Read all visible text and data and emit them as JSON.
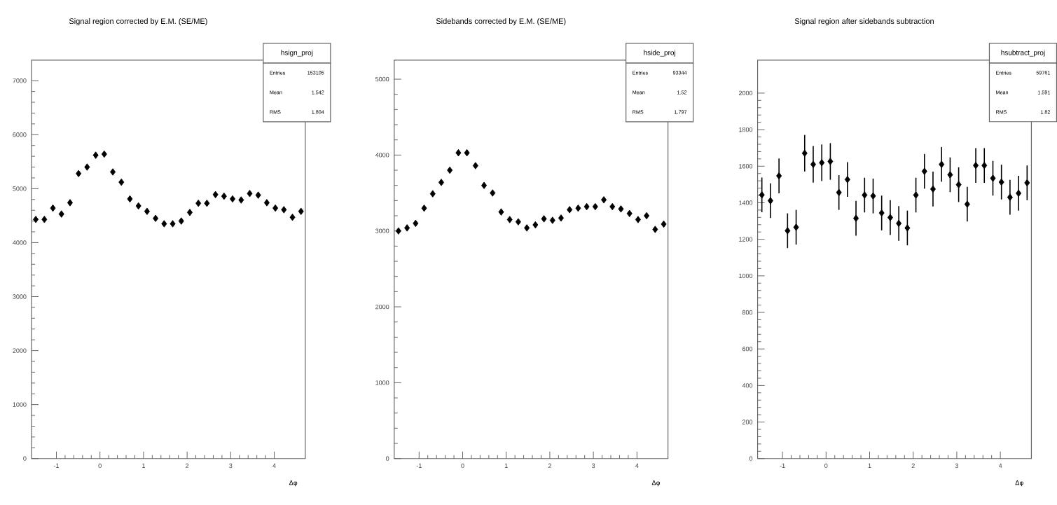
{
  "chart_data": [
    {
      "type": "scatter",
      "title": "Signal region corrected by E.M. (SE/ME)",
      "xlabel": "Δφ",
      "marker": "diamond",
      "color": "#000000",
      "x": [
        -1.473,
        -1.276,
        -1.08,
        -0.884,
        -0.687,
        -0.491,
        -0.295,
        -0.098,
        0.098,
        0.295,
        0.491,
        0.687,
        0.884,
        1.08,
        1.276,
        1.473,
        1.669,
        1.866,
        2.062,
        2.258,
        2.454,
        2.651,
        2.847,
        3.043,
        3.24,
        3.436,
        3.632,
        3.829,
        4.025,
        4.221,
        4.418,
        4.614
      ],
      "values": [
        4430,
        4430,
        4640,
        4530,
        4740,
        5280,
        5400,
        5620,
        5640,
        5310,
        5120,
        4810,
        4680,
        4580,
        4450,
        4350,
        4350,
        4400,
        4560,
        4730,
        4730,
        4890,
        4860,
        4810,
        4790,
        4910,
        4880,
        4740,
        4640,
        4610,
        4470,
        4580
      ],
      "xlim": [
        -1.571,
        4.712
      ],
      "xticks": [
        -1,
        0,
        1,
        2,
        3,
        4
      ],
      "ylim": [
        0,
        7380
      ],
      "yticks": [
        0,
        1000,
        2000,
        3000,
        4000,
        5000,
        6000,
        7000
      ],
      "annotations": [
        "hsign_proj",
        "Entries",
        "153105",
        "Mean",
        "1.542",
        "RMS",
        "1.804"
      ]
    },
    {
      "type": "scatter",
      "title": "Sidebands corrected by E.M. (SE/ME)",
      "xlabel": "Δφ",
      "marker": "diamond",
      "color": "#000000",
      "x": [
        -1.473,
        -1.276,
        -1.08,
        -0.884,
        -0.687,
        -0.491,
        -0.295,
        -0.098,
        0.098,
        0.295,
        0.491,
        0.687,
        0.884,
        1.08,
        1.276,
        1.473,
        1.669,
        1.866,
        2.062,
        2.258,
        2.454,
        2.651,
        2.847,
        3.043,
        3.24,
        3.436,
        3.632,
        3.829,
        4.025,
        4.221,
        4.418,
        4.614
      ],
      "values": [
        3000,
        3040,
        3100,
        3300,
        3490,
        3640,
        3800,
        4030,
        4030,
        3860,
        3600,
        3500,
        3250,
        3150,
        3120,
        3040,
        3080,
        3160,
        3140,
        3170,
        3280,
        3300,
        3320,
        3320,
        3410,
        3320,
        3290,
        3230,
        3150,
        3200,
        3020,
        3090
      ],
      "xlim": [
        -1.571,
        4.712
      ],
      "xticks": [
        -1,
        0,
        1,
        2,
        3,
        4
      ],
      "ylim": [
        0,
        5250
      ],
      "yticks": [
        0,
        1000,
        2000,
        3000,
        4000,
        5000
      ],
      "annotations": [
        "hside_proj",
        "Entries",
        "93344",
        "Mean",
        "1.52",
        "RMS",
        "1.797"
      ]
    },
    {
      "type": "scatter",
      "title": "Signal region after sidebands subtraction",
      "xlabel": "Δφ",
      "marker": "diamond",
      "color": "#000000",
      "x": [
        -1.473,
        -1.276,
        -1.08,
        -0.884,
        -0.687,
        -0.491,
        -0.295,
        -0.098,
        0.098,
        0.295,
        0.491,
        0.687,
        0.884,
        1.08,
        1.276,
        1.473,
        1.669,
        1.866,
        2.062,
        2.258,
        2.454,
        2.651,
        2.847,
        3.043,
        3.24,
        3.436,
        3.632,
        3.829,
        4.025,
        4.221,
        4.418,
        4.614
      ],
      "values": [
        1443,
        1411,
        1547,
        1247,
        1266,
        1671,
        1610,
        1619,
        1626,
        1456,
        1527,
        1315,
        1442,
        1437,
        1344,
        1319,
        1287,
        1262,
        1442,
        1572,
        1475,
        1610,
        1553,
        1499,
        1392,
        1604,
        1604,
        1534,
        1513,
        1430,
        1452,
        1509
      ],
      "errors": [
        95,
        95,
        95,
        95,
        95,
        100,
        100,
        100,
        100,
        95,
        95,
        95,
        95,
        95,
        95,
        95,
        95,
        95,
        95,
        95,
        95,
        95,
        95,
        95,
        95,
        95,
        95,
        95,
        95,
        95,
        95,
        95
      ],
      "xlim": [
        -1.571,
        4.712
      ],
      "xticks": [
        -1,
        0,
        1,
        2,
        3,
        4
      ],
      "ylim": [
        0,
        2180
      ],
      "yticks": [
        0,
        200,
        400,
        600,
        800,
        1000,
        1200,
        1400,
        1600,
        1800,
        2000
      ],
      "annotations": [
        "hsubtract_proj",
        "Entries",
        "59761",
        "Mean",
        "1.591",
        "RMS",
        "1.82"
      ]
    }
  ]
}
